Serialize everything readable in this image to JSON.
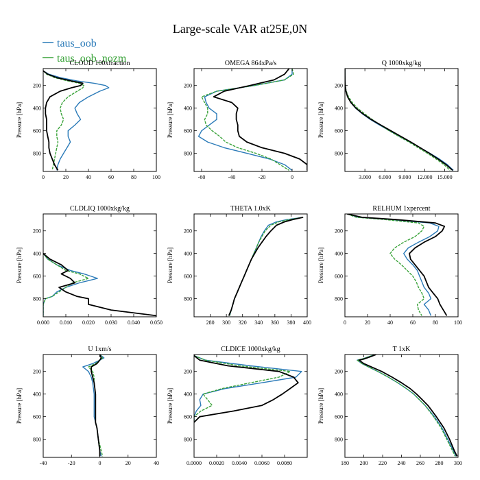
{
  "figure": {
    "title": "Large-scale VAR at25E,0N",
    "ylabel": "Pressure [hPa]"
  },
  "legend": {
    "placement": "top-left",
    "items": [
      {
        "name": "taus_oob",
        "color": "#2a7ab8"
      },
      {
        "name": "taus_oob_nozm",
        "color": "#3aa33a"
      }
    ]
  },
  "series_colors": {
    "taus_oob": "#2a7ab8",
    "taus_oob_nozm": "#3aa33a",
    "third": "#000000"
  },
  "chart_data": [
    {
      "type": "line",
      "title": "CLOUD 100xfraction",
      "xlim": [
        0,
        100
      ],
      "ylim": [
        960,
        50
      ],
      "xticks": [
        0,
        20,
        40,
        60,
        80,
        100
      ],
      "xticklabels": [
        "0",
        "20",
        "40",
        "60",
        "80",
        "100"
      ],
      "yticks": [
        200,
        400,
        600,
        800
      ],
      "y": [
        70,
        100,
        130,
        160,
        180,
        200,
        220,
        250,
        300,
        350,
        400,
        450,
        500,
        550,
        600,
        650,
        700,
        750,
        800,
        850,
        900,
        950
      ],
      "series": [
        {
          "name": "taus_oob",
          "x": [
            0,
            5,
            15,
            30,
            45,
            55,
            58,
            50,
            40,
            32,
            28,
            30,
            33,
            28,
            22,
            22,
            24,
            21,
            18,
            15,
            13,
            12
          ]
        },
        {
          "name": "taus_oob_nozm",
          "x": [
            0,
            3,
            10,
            22,
            32,
            36,
            35,
            30,
            22,
            17,
            15,
            16,
            18,
            16,
            12,
            12,
            13,
            12,
            11,
            10,
            9,
            8
          ]
        },
        {
          "name": "",
          "x": [
            0,
            4,
            12,
            25,
            35,
            33,
            25,
            15,
            6,
            3,
            2,
            2,
            3,
            3,
            3,
            4,
            5,
            5,
            6,
            8,
            10,
            13
          ]
        }
      ]
    },
    {
      "type": "line",
      "title": "OMEGA 864xPa/s",
      "xlim": [
        -65,
        10
      ],
      "ylim": [
        960,
        50
      ],
      "xticks": [
        -60,
        -40,
        -20,
        0
      ],
      "xticklabels": [
        "-60",
        "-40",
        "-20",
        "0"
      ],
      "yticks": [
        200,
        400,
        600,
        800
      ],
      "y": [
        50,
        100,
        150,
        200,
        250,
        300,
        350,
        400,
        450,
        500,
        550,
        600,
        650,
        700,
        750,
        800,
        850,
        900,
        950
      ],
      "series": [
        {
          "name": "taus_oob",
          "x": [
            0,
            0,
            -5,
            -25,
            -50,
            -58,
            -57,
            -55,
            -50,
            -50,
            -55,
            -60,
            -62,
            -56,
            -45,
            -30,
            -15,
            -5,
            0
          ]
        },
        {
          "name": "taus_oob_nozm",
          "x": [
            0,
            1,
            -5,
            -25,
            -50,
            -60,
            -58,
            -56,
            -56,
            -58,
            -57,
            -53,
            -48,
            -44,
            -36,
            -24,
            -14,
            -8,
            -2
          ]
        },
        {
          "name": "",
          "x": [
            -2,
            -5,
            -12,
            -28,
            -45,
            -52,
            -40,
            -36,
            -37,
            -37,
            -36,
            -36,
            -35,
            -30,
            -20,
            -5,
            5,
            10,
            10
          ]
        }
      ]
    },
    {
      "type": "line",
      "title": "Q 1000xkg/kg",
      "xlim": [
        0,
        17000
      ],
      "ylim": [
        960,
        50
      ],
      "xticks": [
        3000,
        6000,
        9000,
        12000,
        15000
      ],
      "xticklabels": [
        "3.000",
        "6.000",
        "9.000",
        "12.000",
        "15.000"
      ],
      "yticks": [
        200,
        400,
        600,
        800
      ],
      "y": [
        50,
        100,
        150,
        200,
        250,
        300,
        350,
        400,
        450,
        500,
        550,
        600,
        650,
        700,
        750,
        800,
        850,
        900,
        950
      ],
      "series": [
        {
          "name": "taus_oob",
          "x": [
            0,
            0,
            10,
            40,
            150,
            400,
            900,
            1600,
            2600,
            3800,
            5200,
            6700,
            8200,
            9800,
            11300,
            12800,
            14200,
            15400,
            16300
          ]
        },
        {
          "name": "taus_oob_nozm",
          "x": [
            0,
            0,
            10,
            50,
            200,
            550,
            1100,
            1900,
            2950,
            4100,
            5350,
            6650,
            8100,
            9600,
            11000,
            12400,
            13700,
            14900,
            15800
          ]
        },
        {
          "name": "",
          "x": [
            0,
            0,
            10,
            40,
            150,
            400,
            900,
            1650,
            2700,
            3950,
            5400,
            6900,
            8400,
            9900,
            11300,
            12700,
            14000,
            15200,
            16200
          ]
        }
      ]
    },
    {
      "type": "line",
      "title": "CLDLIQ 1000xkg/kg",
      "xlim": [
        0,
        0.05
      ],
      "ylim": [
        960,
        50
      ],
      "xticks": [
        0,
        0.01,
        0.02,
        0.03,
        0.04,
        0.05
      ],
      "xticklabels": [
        "0.000",
        "0.010",
        "0.020",
        "0.030",
        "0.040",
        "0.050"
      ],
      "yticks": [
        200,
        400,
        600,
        800
      ],
      "y": [
        400,
        450,
        500,
        550,
        580,
        620,
        660,
        700,
        740,
        780,
        800,
        850,
        900,
        950
      ],
      "series": [
        {
          "name": "taus_oob",
          "x": [
            0,
            0.002,
            0.006,
            0.012,
            0.018,
            0.024,
            0.016,
            0.01,
            0.006,
            0.004,
            0.001,
            0,
            0,
            0
          ]
        },
        {
          "name": "taus_oob_nozm",
          "x": [
            0,
            0.002,
            0.006,
            0.01,
            0.016,
            0.02,
            0.013,
            0.01,
            0.007,
            0.004,
            0.001,
            0,
            0,
            0
          ]
        },
        {
          "name": "",
          "x": [
            0,
            0.003,
            0.008,
            0.011,
            0.008,
            0.012,
            0.014,
            0.007,
            0.01,
            0.015,
            0.02,
            0.02,
            0.03,
            0.05
          ]
        }
      ]
    },
    {
      "type": "line",
      "title": "THETA 1.0xK",
      "xlim": [
        260,
        400
      ],
      "ylim": [
        960,
        50
      ],
      "xticks": [
        280,
        300,
        320,
        340,
        360,
        380,
        400
      ],
      "xticklabels": [
        "280",
        "300",
        "320",
        "340",
        "360",
        "380",
        "400"
      ],
      "yticks": [
        200,
        400,
        600,
        800
      ],
      "y": [
        80,
        100,
        120,
        150,
        200,
        250,
        300,
        350,
        400,
        450,
        500,
        550,
        600,
        650,
        700,
        750,
        800,
        850,
        900,
        950
      ],
      "series": [
        {
          "name": "taus_oob",
          "x": [
            395,
            375,
            362,
            352,
            347,
            343,
            340,
            337,
            334,
            331,
            328,
            325,
            322,
            319,
            316,
            313,
            310,
            308,
            306,
            304
          ]
        },
        {
          "name": "taus_oob_nozm",
          "x": [
            395,
            378,
            365,
            355,
            348,
            344,
            340,
            337,
            334,
            331,
            328,
            325,
            322,
            319,
            316,
            313,
            310,
            308,
            306,
            304
          ]
        },
        {
          "name": "",
          "x": [
            395,
            382,
            372,
            362,
            355,
            349,
            344,
            339,
            335,
            331,
            328,
            325,
            322,
            319,
            316,
            313,
            310,
            308,
            306,
            303
          ]
        }
      ]
    },
    {
      "type": "line",
      "title": "RELHUM 1xpercent",
      "xlim": [
        0,
        100
      ],
      "ylim": [
        960,
        50
      ],
      "xticks": [
        0,
        20,
        40,
        60,
        80,
        100
      ],
      "xticklabels": [
        "0",
        "20",
        "40",
        "60",
        "80",
        "100"
      ],
      "yticks": [
        200,
        400,
        600,
        800
      ],
      "y": [
        50,
        80,
        100,
        130,
        160,
        200,
        250,
        300,
        350,
        400,
        450,
        500,
        550,
        600,
        650,
        700,
        750,
        800,
        850,
        900,
        950
      ],
      "series": [
        {
          "name": "taus_oob",
          "x": [
            2,
            12,
            40,
            75,
            83,
            82,
            75,
            65,
            56,
            52,
            55,
            60,
            64,
            66,
            68,
            70,
            74,
            76,
            70,
            74,
            76
          ]
        },
        {
          "name": "taus_oob_nozm",
          "x": [
            2,
            10,
            35,
            65,
            70,
            68,
            62,
            52,
            44,
            40,
            44,
            50,
            55,
            60,
            63,
            65,
            68,
            70,
            64,
            65,
            68
          ]
        },
        {
          "name": "",
          "x": [
            2,
            15,
            45,
            80,
            88,
            86,
            80,
            70,
            62,
            57,
            58,
            62,
            66,
            70,
            72,
            74,
            78,
            82,
            84,
            87,
            90
          ]
        }
      ]
    },
    {
      "type": "line",
      "title": "U 1xm/s",
      "xlim": [
        -40,
        40
      ],
      "ylim": [
        960,
        50
      ],
      "xticks": [
        -40,
        -20,
        0,
        20,
        40
      ],
      "xticklabels": [
        "-40",
        "-20",
        "0",
        "20",
        "40"
      ],
      "yticks": [
        200,
        400,
        600,
        800
      ],
      "y": [
        50,
        80,
        100,
        130,
        160,
        200,
        250,
        300,
        400,
        500,
        600,
        650,
        700,
        800,
        900,
        950
      ],
      "series": [
        {
          "name": "taus_oob",
          "x": [
            0,
            3,
            0,
            -5,
            -12,
            -8,
            -6,
            -5,
            -4,
            -4,
            -4,
            -3,
            -2,
            -1,
            0,
            1
          ]
        },
        {
          "name": "taus_oob_nozm",
          "x": [
            0,
            2,
            0,
            -3,
            -8,
            -5,
            -4,
            -4,
            -3,
            -3,
            -3,
            -3,
            -2,
            -1,
            1,
            2
          ]
        },
        {
          "name": "",
          "x": [
            0,
            1,
            0,
            -2,
            -6,
            -6,
            -5,
            -4,
            -3,
            -3,
            -3,
            -3,
            -2,
            -1,
            0,
            0
          ]
        }
      ]
    },
    {
      "type": "line",
      "title": "CLDICE 1000xkg/kg",
      "xlim": [
        0,
        0.01
      ],
      "ylim": [
        960,
        50
      ],
      "xticks": [
        0,
        0.002,
        0.004,
        0.006,
        0.008
      ],
      "xticklabels": [
        "0.0000",
        "0.0020",
        "0.0040",
        "0.0060",
        "0.0080"
      ],
      "yticks": [
        200,
        400,
        600,
        800
      ],
      "y": [
        60,
        100,
        150,
        200,
        250,
        300,
        350,
        400,
        450,
        500,
        550,
        600,
        650
      ],
      "series": [
        {
          "name": "taus_oob",
          "x": [
            0,
            0.001,
            0.005,
            0.0095,
            0.009,
            0.006,
            0.0028,
            0.0008,
            0.0005,
            0.0006,
            0.0002,
            0,
            0
          ]
        },
        {
          "name": "taus_oob_nozm",
          "x": [
            0,
            0.001,
            0.004,
            0.0085,
            0.0075,
            0.005,
            0.0025,
            0.0008,
            0.0012,
            0.0016,
            0.0006,
            0,
            0
          ]
        },
        {
          "name": "",
          "x": [
            0,
            0.0005,
            0.003,
            0.0075,
            0.0088,
            0.0092,
            0.0085,
            0.0078,
            0.007,
            0.006,
            0.0035,
            0.0005,
            0
          ]
        }
      ]
    },
    {
      "type": "line",
      "title": "T 1xK",
      "xlim": [
        180,
        300
      ],
      "ylim": [
        960,
        50
      ],
      "xticks": [
        180,
        200,
        220,
        240,
        260,
        280,
        300
      ],
      "xticklabels": [
        "180",
        "200",
        "220",
        "240",
        "260",
        "280",
        "300"
      ],
      "yticks": [
        200,
        400,
        600,
        800
      ],
      "y": [
        50,
        70,
        90,
        100,
        130,
        160,
        200,
        250,
        300,
        350,
        400,
        450,
        500,
        600,
        700,
        800,
        900,
        950
      ],
      "series": [
        {
          "name": "taus_oob",
          "x": [
            212,
            205,
            198,
            193,
            198,
            205,
            215,
            226,
            236,
            245,
            253,
            259,
            265,
            275,
            283,
            289,
            295,
            298
          ]
        },
        {
          "name": "taus_oob_nozm",
          "x": [
            212,
            205,
            198,
            193,
            198,
            205,
            215,
            226,
            236,
            245,
            253,
            259,
            265,
            274,
            282,
            288,
            294,
            297
          ]
        },
        {
          "name": "",
          "x": [
            213,
            207,
            200,
            195,
            200,
            208,
            219,
            230,
            240,
            249,
            256,
            262,
            268,
            277,
            285,
            291,
            296,
            299
          ]
        }
      ]
    }
  ]
}
